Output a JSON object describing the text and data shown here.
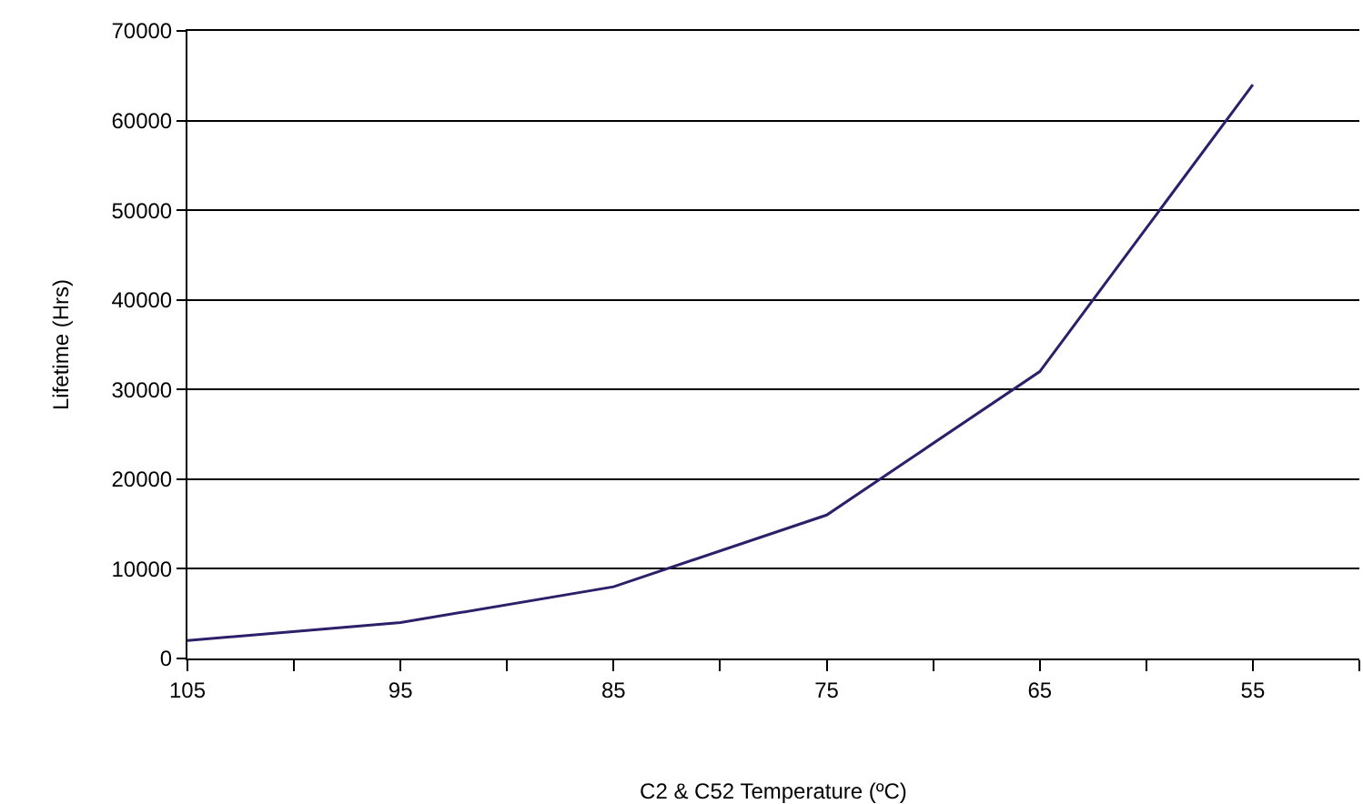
{
  "chart_data": {
    "type": "line",
    "xlabel": "C2 & C52 Temperature (ºC)",
    "ylabel": "Lifetime (Hrs)",
    "x": [
      105,
      95,
      85,
      75,
      65,
      55
    ],
    "series": [
      {
        "color": "#2e1f6b",
        "values": [
          2000,
          4000,
          8000,
          16000,
          32000,
          64000
        ]
      }
    ],
    "xlim": [
      105,
      50
    ],
    "xticks": [
      105,
      {
        "value": 100,
        "label": null
      },
      95,
      {
        "value": 90,
        "label": null
      },
      85,
      {
        "value": 80,
        "label": null
      },
      75,
      {
        "value": 70,
        "label": null
      },
      65,
      {
        "value": 60,
        "label": null
      },
      55,
      {
        "value": 50,
        "label": null
      }
    ],
    "ylim": [
      0,
      70000
    ],
    "yticks": [
      0,
      10000,
      20000,
      30000,
      40000,
      50000,
      60000,
      70000
    ],
    "grid": "y",
    "marker": "none",
    "line_style": "solid"
  }
}
